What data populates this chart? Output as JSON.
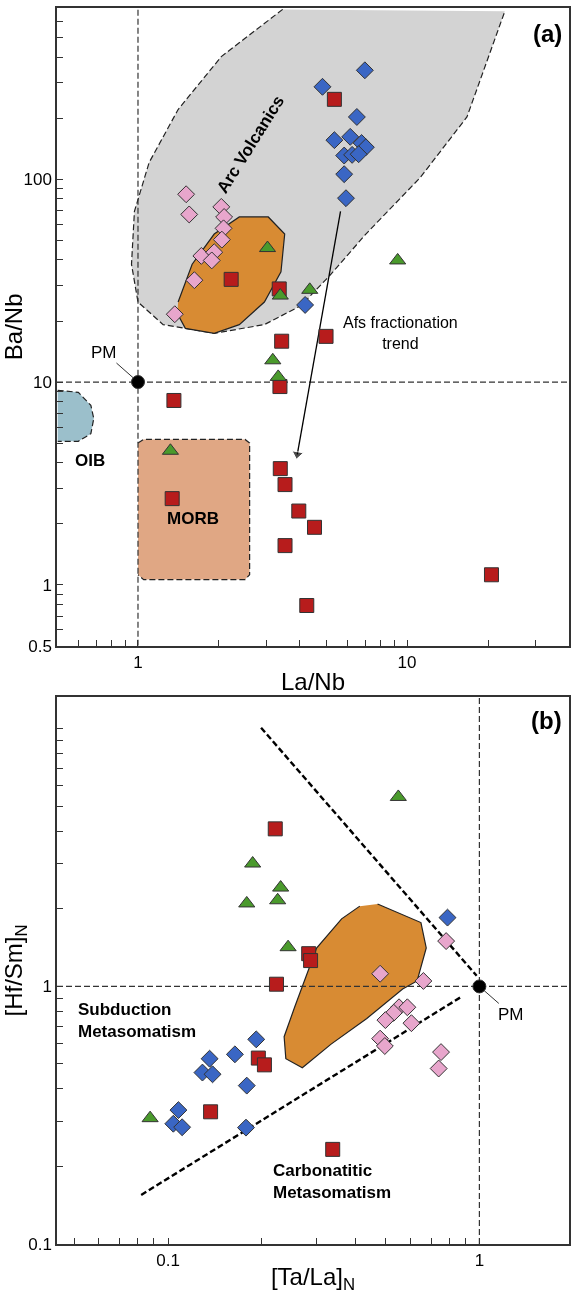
{
  "chart_data": [
    {
      "type": "scatter",
      "xlabel": "La/Nb",
      "ylabel": "Ba/Nb",
      "log": "xy",
      "xlim": [
        0.5,
        40
      ],
      "ylim": [
        0.5,
        700
      ],
      "xticks": [
        {
          "value": 0.6,
          "label": null
        },
        {
          "value": 0.7,
          "label": null
        },
        {
          "value": 0.8,
          "label": null
        },
        {
          "value": 0.9,
          "label": null
        },
        1,
        {
          "value": 2,
          "label": null
        },
        {
          "value": 3,
          "label": null
        },
        {
          "value": 4,
          "label": null
        },
        {
          "value": 5,
          "label": null
        },
        {
          "value": 6,
          "label": null
        },
        {
          "value": 7,
          "label": null
        },
        {
          "value": 8,
          "label": null
        },
        {
          "value": 9,
          "label": null
        },
        10,
        {
          "value": 20,
          "label": null
        },
        {
          "value": 30,
          "label": null
        }
      ],
      "yticks": [
        0.5,
        {
          "value": 0.6,
          "label": null
        },
        {
          "value": 0.7,
          "label": null
        },
        {
          "value": 0.8,
          "label": null
        },
        {
          "value": 0.9,
          "label": null
        },
        1,
        {
          "value": 2,
          "label": null
        },
        {
          "value": 3,
          "label": null
        },
        {
          "value": 4,
          "label": null
        },
        {
          "value": 5,
          "label": null
        },
        {
          "value": 6,
          "label": null
        },
        {
          "value": 7,
          "label": null
        },
        {
          "value": 8,
          "label": null
        },
        {
          "value": 9,
          "label": null
        },
        10,
        {
          "value": 20,
          "label": null
        },
        {
          "value": 30,
          "label": null
        },
        {
          "value": 40,
          "label": null
        },
        {
          "value": 50,
          "label": null
        },
        {
          "value": 60,
          "label": null
        },
        {
          "value": 70,
          "label": null
        },
        {
          "value": 80,
          "label": null
        },
        {
          "value": 90,
          "label": null
        },
        100,
        {
          "value": 200,
          "label": null
        },
        {
          "value": 300,
          "label": null
        },
        {
          "value": 400,
          "label": null
        },
        {
          "value": 500,
          "label": null
        },
        {
          "value": 600,
          "label": null
        }
      ],
      "ref_lines": [
        {
          "axis": "x",
          "value": 1,
          "line_style": "dashed",
          "color": "#333333"
        },
        {
          "axis": "y",
          "value": 10,
          "line_style": "dashed",
          "color": "#333333"
        }
      ],
      "annotations": [
        "(a)",
        "Arc Volcanics",
        "OIB",
        "MORB"
      ],
      "series": [
        {
          "type": "area",
          "color": "#d3d3d3",
          "line_style": "dashed",
          "x": [
            3.45,
            2.04,
            1.41,
            1.1,
            0.97,
            0.946,
            1.0,
            1.24,
            1.92,
            2.95,
            4.03,
            5.16,
            7.03,
            11.2,
            16.7,
            23.1
          ],
          "values": [
            689,
            403,
            221,
            121,
            69.5,
            38.1,
            24.8,
            19.2,
            17.4,
            19.2,
            23.8,
            33.5,
            53.7,
            102,
            203,
            675
          ]
        },
        {
          "type": "area",
          "color": "#d88b33",
          "line_style": "solid",
          "x": [
            1.41,
            1.59,
            1.92,
            2.38,
            3.05,
            3.51,
            3.4,
            2.95,
            2.38,
            1.92,
            1.5,
            1.4
          ],
          "values": [
            24.8,
            38.1,
            53.7,
            65.2,
            65.2,
            53.7,
            35.0,
            24.8,
            19.2,
            17.4,
            18.4,
            21.8
          ]
        },
        {
          "type": "area",
          "color": "#9bbfcb",
          "line_style": "dashed",
          "x": [
            0.503,
            0.6,
            0.668,
            0.685,
            0.668,
            0.6,
            0.503
          ],
          "values": [
            9.1,
            8.9,
            7.67,
            6.61,
            5.56,
            5.1,
            5.1
          ]
        },
        {
          "type": "area",
          "color": "#e0a784",
          "line_style": "dashed",
          "x": [
            1.0,
            1.05,
            2.5,
            2.6,
            2.6,
            2.5,
            1.05,
            1.0
          ],
          "values": [
            5.0,
            5.21,
            5.21,
            5.0,
            1.12,
            1.06,
            1.06,
            1.12
          ]
        },
        {
          "type": "line",
          "name": "Afs fractionation\ntrend",
          "color": "#000000",
          "line_style": "solid",
          "marker": "triangle",
          "x": [
            5.66,
            3.91
          ],
          "values": [
            69.5,
            4.4
          ]
        },
        {
          "type": "scatter",
          "color": "#3a66c4",
          "marker": "diamond",
          "x": [
            4.85,
            6.97,
            6.51,
            5.37,
            6.15,
            6.78,
            7.03,
            5.84,
            6.25,
            6.61,
            5.84,
            5.93,
            4.18
          ],
          "values": [
            286,
            345,
            203,
            156,
            162,
            151,
            144,
            131,
            132,
            133,
            106,
            80.7,
            24.0
          ]
        },
        {
          "type": "scatter",
          "color": "#e8a6cc",
          "marker": "diamond",
          "x": [
            1.51,
            1.55,
            2.04,
            2.09,
            2.08,
            2.05,
            1.72,
            1.92,
            1.88,
            1.62,
            1.37
          ],
          "values": [
            84.4,
            67.1,
            73.1,
            65.2,
            57.3,
            50.4,
            41.9,
            43.7,
            39.8,
            31.8,
            21.6
          ]
        },
        {
          "type": "scatter",
          "color": "#b71c1c",
          "marker": "square",
          "x": [
            5.37,
            2.22,
            3.35,
            3.42,
            5.0,
            3.37,
            1.36,
            3.38,
            3.52,
            1.34,
            3.96,
            4.53,
            3.52,
            20.6,
            4.24
          ],
          "values": [
            248,
            32.1,
            28.8,
            15.9,
            16.8,
            9.5,
            8.11,
            3.74,
            3.12,
            2.66,
            2.31,
            1.92,
            1.56,
            1.12,
            0.79
          ]
        },
        {
          "type": "scatter",
          "color": "#4a9a2c",
          "marker": "triangle",
          "x": [
            3.03,
            3.38,
            4.35,
            9.23,
            3.17,
            3.32,
            1.32
          ],
          "values": [
            45.8,
            26.7,
            28.5,
            39.8,
            12.8,
            10.6,
            4.58
          ]
        },
        {
          "type": "scatter",
          "name": "PM",
          "color": "#000000",
          "marker": "circle",
          "x": [
            1
          ],
          "values": [
            10
          ]
        }
      ]
    },
    {
      "type": "scatter",
      "xlabel": "[Ta/La]$_{N}$",
      "ylabel": "[Hf/Sm]$_{N}$",
      "log": "xy",
      "xlim": [
        0.044,
        1.94
      ],
      "ylim": [
        0.1,
        13.3
      ],
      "xticks": [
        {
          "value": 0.05,
          "label": null
        },
        {
          "value": 0.06,
          "label": null
        },
        {
          "value": 0.07,
          "label": null
        },
        {
          "value": 0.08,
          "label": null
        },
        {
          "value": 0.09,
          "label": null
        },
        0.1,
        {
          "value": 0.2,
          "label": null
        },
        {
          "value": 0.3,
          "label": null
        },
        {
          "value": 0.4,
          "label": null
        },
        {
          "value": 0.5,
          "label": null
        },
        {
          "value": 0.6,
          "label": null
        },
        {
          "value": 0.7,
          "label": null
        },
        {
          "value": 0.8,
          "label": null
        },
        {
          "value": 0.9,
          "label": null
        },
        1
      ],
      "yticks": [
        0.1,
        {
          "value": 0.2,
          "label": null
        },
        {
          "value": 0.3,
          "label": null
        },
        {
          "value": 0.4,
          "label": null
        },
        {
          "value": 0.5,
          "label": null
        },
        {
          "value": 0.6,
          "label": null
        },
        {
          "value": 0.7,
          "label": null
        },
        {
          "value": 0.8,
          "label": null
        },
        {
          "value": 0.9,
          "label": null
        },
        1,
        {
          "value": 2,
          "label": null
        },
        {
          "value": 3,
          "label": null
        },
        {
          "value": 4,
          "label": null
        },
        {
          "value": 5,
          "label": null
        },
        {
          "value": 6,
          "label": null
        },
        {
          "value": 7,
          "label": null
        },
        {
          "value": 8,
          "label": null
        },
        {
          "value": 9,
          "label": null
        },
        {
          "value": 10,
          "label": null
        }
      ],
      "ref_lines": [
        {
          "axis": "x",
          "value": 1,
          "line_style": "dashed",
          "color": "#333333"
        },
        {
          "axis": "y",
          "value": 1,
          "line_style": "dashed",
          "color": "#333333"
        }
      ],
      "annotations": [
        "(b)",
        "Subduction\nMetasomatism",
        "Carbonatitic\nMetasomatism"
      ],
      "series": [
        {
          "type": "area",
          "color": "#d88b33",
          "line_style": "solid",
          "x": [
            0.471,
            0.649,
            0.675,
            0.631,
            0.567,
            0.435,
            0.334,
            0.27,
            0.239,
            0.236,
            0.255,
            0.3,
            0.361,
            0.413
          ],
          "values": [
            2.09,
            1.77,
            1.41,
            1.05,
            0.977,
            0.751,
            0.597,
            0.483,
            0.524,
            0.638,
            0.83,
            1.41,
            1.83,
            2.05
          ]
        },
        {
          "type": "line",
          "color": "#000000",
          "line_style": "dashed",
          "x": [
            0.199,
            0.98
          ],
          "values": [
            10.1,
            1.1
          ]
        },
        {
          "type": "line",
          "color": "#000000",
          "line_style": "dashed",
          "x": [
            0.082,
            0.88
          ],
          "values": [
            0.155,
            0.915
          ]
        },
        {
          "type": "scatter",
          "color": "#3a66c4",
          "marker": "diamond",
          "x": [
            0.79,
            0.192,
            0.164,
            0.136,
            0.129,
            0.139,
            0.179,
            0.108,
            0.104,
            0.111,
            0.178
          ],
          "values": [
            1.85,
            0.623,
            0.545,
            0.524,
            0.463,
            0.456,
            0.412,
            0.331,
            0.293,
            0.284,
            0.283
          ]
        },
        {
          "type": "scatter",
          "color": "#e8a6cc",
          "marker": "diamond",
          "x": [
            0.782,
            0.48,
            0.661,
            0.552,
            0.587,
            0.531,
            0.499,
            0.605,
            0.48,
            0.497,
            0.753,
            0.74
          ],
          "values": [
            1.5,
            1.12,
            1.05,
            0.83,
            0.83,
            0.79,
            0.74,
            0.72,
            0.627,
            0.587,
            0.556,
            0.48
          ]
        },
        {
          "type": "scatter",
          "color": "#4a9a2c",
          "marker": "triangle",
          "x": [
            0.549,
            0.187,
            0.23,
            0.179,
            0.225,
            0.243,
            0.0876
          ],
          "values": [
            5.44,
            3.0,
            2.42,
            2.1,
            2.16,
            1.42,
            0.308
          ]
        },
        {
          "type": "scatter",
          "color": "#b71c1c",
          "marker": "square",
          "x": [
            0.221,
            0.283,
            0.287,
            0.223,
            0.195,
            0.204,
            0.137,
            0.338
          ],
          "values": [
            4.09,
            1.34,
            1.26,
            1.02,
            0.527,
            0.496,
            0.326,
            0.233
          ]
        },
        {
          "type": "scatter",
          "name": "PM",
          "color": "#000000",
          "marker": "circle",
          "x": [
            1
          ],
          "values": [
            1
          ]
        }
      ]
    }
  ]
}
